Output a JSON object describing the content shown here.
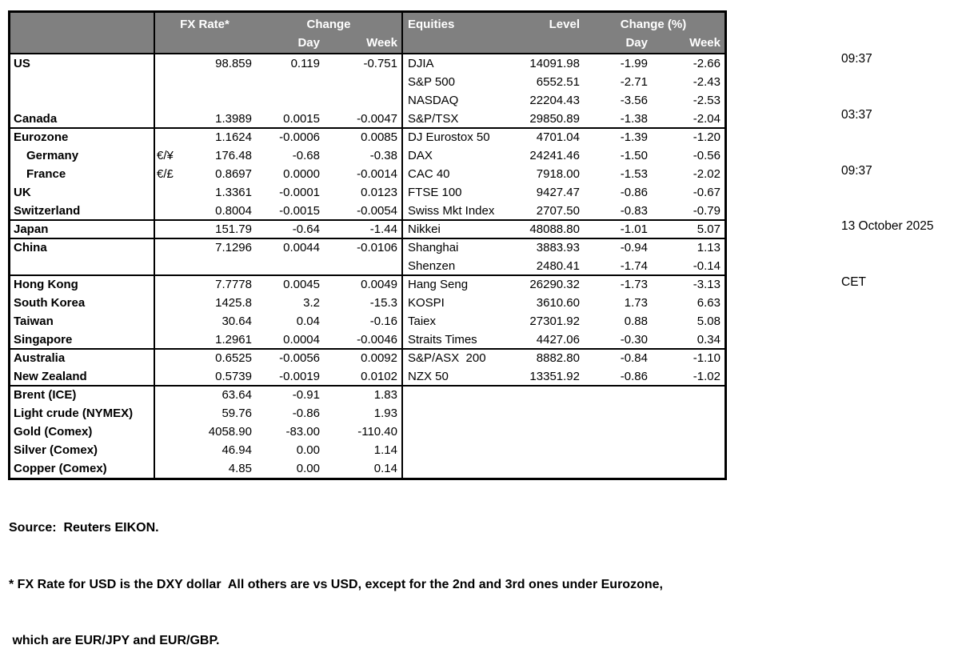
{
  "colors": {
    "header_bg": "#808080",
    "header_text": "#ffffff",
    "text": "#000000",
    "border": "#000000",
    "background": "#ffffff"
  },
  "header": {
    "fx_rate": "FX Rate*",
    "change": "Change",
    "day": "Day",
    "week": "Week",
    "equities": "Equities",
    "level": "Level",
    "change_pct": "Change (%)"
  },
  "rows": [
    {
      "name": "US",
      "sym": "",
      "rate": "98.859",
      "day": "0.119",
      "week": "-0.751",
      "eq": "DJIA",
      "level": "14091.98",
      "eq_day": "-1.99",
      "eq_week": "-2.66",
      "indent": false,
      "sep": false
    },
    {
      "name": "",
      "sym": "",
      "rate": "",
      "day": "",
      "week": "",
      "eq": "S&P 500",
      "level": "6552.51",
      "eq_day": "-2.71",
      "eq_week": "-2.43",
      "indent": false,
      "sep": false
    },
    {
      "name": "",
      "sym": "",
      "rate": "",
      "day": "",
      "week": "",
      "eq": "NASDAQ",
      "level": "22204.43",
      "eq_day": "-3.56",
      "eq_week": "-2.53",
      "indent": false,
      "sep": false
    },
    {
      "name": "Canada",
      "sym": "",
      "rate": "1.3989",
      "day": "0.0015",
      "week": "-0.0047",
      "eq": "S&P/TSX",
      "level": "29850.89",
      "eq_day": "-1.38",
      "eq_week": "-2.04",
      "indent": false,
      "sep": false
    },
    {
      "name": "Eurozone",
      "sym": "",
      "rate": "1.1624",
      "day": "-0.0006",
      "week": "0.0085",
      "eq": "DJ Eurostox 50",
      "level": "4701.04",
      "eq_day": "-1.39",
      "eq_week": "-1.20",
      "indent": false,
      "sep": true
    },
    {
      "name": "Germany",
      "sym": "€/¥",
      "rate": "176.48",
      "day": "-0.68",
      "week": "-0.38",
      "eq": "DAX",
      "level": "24241.46",
      "eq_day": "-1.50",
      "eq_week": "-0.56",
      "indent": true,
      "sep": false
    },
    {
      "name": "France",
      "sym": "€/£",
      "rate": "0.8697",
      "day": "0.0000",
      "week": "-0.0014",
      "eq": "CAC 40",
      "level": "7918.00",
      "eq_day": "-1.53",
      "eq_week": "-2.02",
      "indent": true,
      "sep": false
    },
    {
      "name": "UK",
      "sym": "",
      "rate": "1.3361",
      "day": "-0.0001",
      "week": "0.0123",
      "eq": "FTSE 100",
      "level": "9427.47",
      "eq_day": "-0.86",
      "eq_week": "-0.67",
      "indent": false,
      "sep": false
    },
    {
      "name": "Switzerland",
      "sym": "",
      "rate": "0.8004",
      "day": "-0.0015",
      "week": "-0.0054",
      "eq": "Swiss Mkt Index",
      "level": "2707.50",
      "eq_day": "-0.83",
      "eq_week": "-0.79",
      "indent": false,
      "sep": false
    },
    {
      "name": "Japan",
      "sym": "",
      "rate": "151.79",
      "day": "-0.64",
      "week": "-1.44",
      "eq": "Nikkei",
      "level": "48088.80",
      "eq_day": "-1.01",
      "eq_week": "5.07",
      "indent": false,
      "sep": true
    },
    {
      "name": "China",
      "sym": "",
      "rate": "7.1296",
      "day": "0.0044",
      "week": "-0.0106",
      "eq": "Shanghai",
      "level": "3883.93",
      "eq_day": "-0.94",
      "eq_week": "1.13",
      "indent": false,
      "sep": true
    },
    {
      "name": "",
      "sym": "",
      "rate": "",
      "day": "",
      "week": "",
      "eq": "Shenzen",
      "level": "2480.41",
      "eq_day": "-1.74",
      "eq_week": "-0.14",
      "indent": false,
      "sep": false
    },
    {
      "name": "Hong Kong",
      "sym": "",
      "rate": "7.7778",
      "day": "0.0045",
      "week": "0.0049",
      "eq": "Hang Seng",
      "level": "26290.32",
      "eq_day": "-1.73",
      "eq_week": "-3.13",
      "indent": false,
      "sep": true
    },
    {
      "name": "South Korea",
      "sym": "",
      "rate": "1425.8",
      "day": "3.2",
      "week": "-15.3",
      "eq": "KOSPI",
      "level": "3610.60",
      "eq_day": "1.73",
      "eq_week": "6.63",
      "indent": false,
      "sep": false
    },
    {
      "name": "Taiwan",
      "sym": "",
      "rate": "30.64",
      "day": "0.04",
      "week": "-0.16",
      "eq": "Taiex",
      "level": "27301.92",
      "eq_day": "0.88",
      "eq_week": "5.08",
      "indent": false,
      "sep": false
    },
    {
      "name": "Singapore",
      "sym": "",
      "rate": "1.2961",
      "day": "0.0004",
      "week": "-0.0046",
      "eq": "Straits Times",
      "level": "4427.06",
      "eq_day": "-0.30",
      "eq_week": "0.34",
      "indent": false,
      "sep": false
    },
    {
      "name": "Australia",
      "sym": "",
      "rate": "0.6525",
      "day": "-0.0056",
      "week": "0.0092",
      "eq": "S&P/ASX  200",
      "level": "8882.80",
      "eq_day": "-0.84",
      "eq_week": "-1.10",
      "indent": false,
      "sep": true
    },
    {
      "name": "New Zealand",
      "sym": "",
      "rate": "0.5739",
      "day": "-0.0019",
      "week": "0.0102",
      "eq": "NZX 50",
      "level": "13351.92",
      "eq_day": "-0.86",
      "eq_week": "-1.02",
      "indent": false,
      "sep": false
    },
    {
      "name": "Brent (ICE)",
      "sym": "",
      "rate": "63.64",
      "day": "-0.91",
      "week": "1.83",
      "eq": "",
      "level": "",
      "eq_day": "",
      "eq_week": "",
      "indent": false,
      "sep": true
    },
    {
      "name": "Light crude (NYMEX)",
      "sym": "",
      "rate": "59.76",
      "day": "-0.86",
      "week": "1.93",
      "eq": "",
      "level": "",
      "eq_day": "",
      "eq_week": "",
      "indent": false,
      "sep": false
    },
    {
      "name": "Gold (Comex)",
      "sym": "",
      "rate": "4058.90",
      "day": "-83.00",
      "week": "-110.40",
      "eq": "",
      "level": "",
      "eq_day": "",
      "eq_week": "",
      "indent": false,
      "sep": false
    },
    {
      "name": "Silver (Comex)",
      "sym": "",
      "rate": "46.94",
      "day": "0.00",
      "week": "1.14",
      "eq": "",
      "level": "",
      "eq_day": "",
      "eq_week": "",
      "indent": false,
      "sep": false
    },
    {
      "name": "Copper (Comex)",
      "sym": "",
      "rate": "4.85",
      "day": "0.00",
      "week": "0.14",
      "eq": "",
      "level": "",
      "eq_day": "",
      "eq_week": "",
      "indent": false,
      "sep": false
    }
  ],
  "timestamps": [
    "09:37",
    "03:37",
    "09:37",
    "13 October 2025",
    "CET"
  ],
  "footer": {
    "source": "Source:  Reuters EIKON.",
    "note_line1": "* FX Rate for USD is the DXY dollar  All others are vs USD, except for the 2nd and 3rd ones under Eurozone,",
    "note_line2": " which are EUR/JPY and EUR/GBP."
  }
}
